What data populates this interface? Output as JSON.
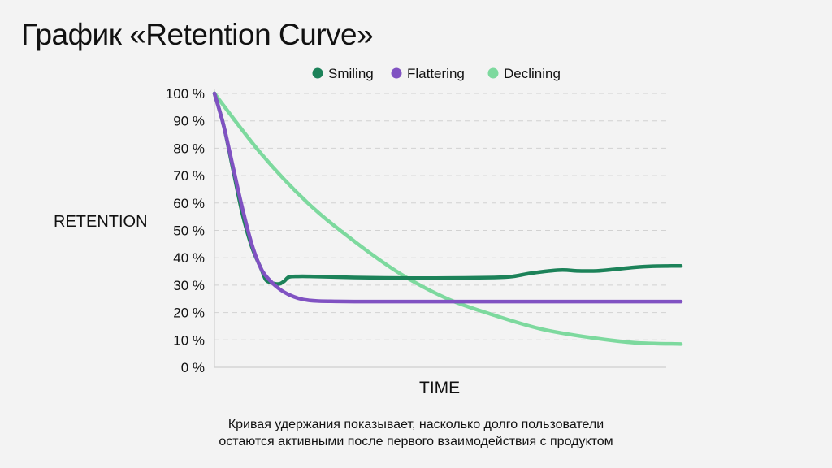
{
  "title": "График «Retention Curve»",
  "caption": {
    "line1": "Кривая удержания показывает, насколько долго пользователи",
    "line2": "остаются активными после первого взаимодействия с продуктом"
  },
  "chart_data": {
    "type": "line",
    "title": "",
    "xlabel": "TIME",
    "ylabel": "RETENTION",
    "ylim": [
      0,
      100
    ],
    "yticks": [
      0,
      10,
      20,
      30,
      40,
      50,
      60,
      70,
      80,
      90,
      100
    ],
    "ytick_labels": [
      "0 %",
      "10 %",
      "20 %",
      "30 %",
      "40 %",
      "50 %",
      "60 %",
      "70 %",
      "80 %",
      "90 %",
      "100 %"
    ],
    "xlim": [
      0,
      100
    ],
    "grid": true,
    "legend_position": "top",
    "series": [
      {
        "name": "Smiling",
        "color": "#1c8259",
        "x": [
          0,
          2,
          4,
          6,
          8,
          10,
          11,
          12,
          13,
          14,
          15,
          16,
          18,
          20,
          25,
          30,
          40,
          50,
          60,
          64,
          68,
          74,
          78,
          82,
          86,
          90,
          94,
          98,
          100
        ],
        "y": [
          100,
          88,
          72,
          56,
          44,
          36,
          32,
          31,
          30.5,
          30.5,
          31.5,
          33,
          33.2,
          33.2,
          33,
          32.8,
          32.6,
          32.6,
          32.8,
          33.2,
          34.4,
          35.5,
          35.2,
          35.2,
          35.8,
          36.5,
          36.9,
          37,
          37
        ]
      },
      {
        "name": "Flattering",
        "color": "#8052c2",
        "x": [
          0,
          2,
          4,
          6,
          8,
          10,
          12,
          14,
          16,
          18,
          20,
          22,
          25,
          30,
          40,
          60,
          80,
          100
        ],
        "y": [
          100,
          88,
          73,
          58,
          45,
          36,
          31.5,
          28.5,
          26.5,
          25.2,
          24.5,
          24.2,
          24.1,
          24,
          24,
          24,
          24,
          24
        ]
      },
      {
        "name": "Declining",
        "color": "#7dd99e",
        "x": [
          0,
          10,
          20,
          30,
          40,
          50,
          60,
          70,
          80,
          90,
          100
        ],
        "y": [
          100,
          78,
          60,
          46,
          34,
          25,
          19,
          14,
          11,
          9,
          8.5
        ]
      }
    ]
  }
}
